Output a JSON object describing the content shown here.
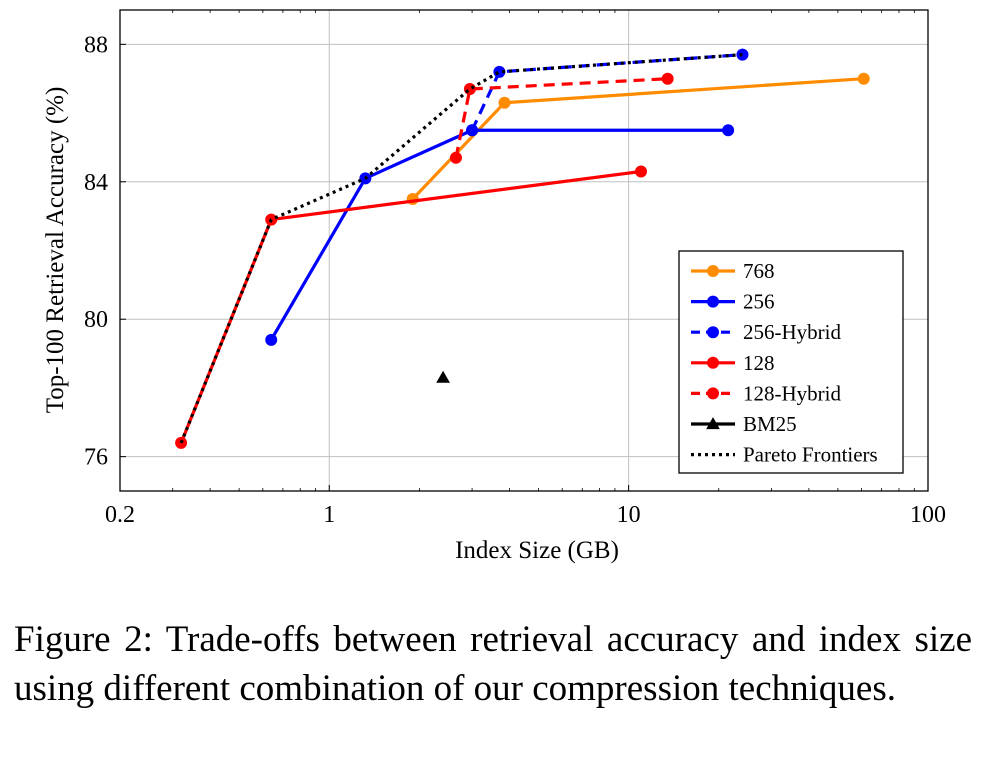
{
  "chart_data": {
    "type": "line",
    "xscale": "log",
    "xlabel": "Index Size (GB)",
    "ylabel": "Top-100 Retrieval Accuracy (%)",
    "xlim": [
      0.2,
      100
    ],
    "ylim": [
      75,
      89
    ],
    "xticks": [
      {
        "value": 0.2,
        "label": "0.2"
      },
      {
        "value": 1,
        "label": "1"
      },
      {
        "value": 10,
        "label": "10"
      },
      {
        "value": 100,
        "label": "100"
      }
    ],
    "yticks": [
      {
        "value": 76,
        "label": "76"
      },
      {
        "value": 80,
        "label": "80"
      },
      {
        "value": 84,
        "label": "84"
      },
      {
        "value": 88,
        "label": "88"
      }
    ],
    "grid": true,
    "legend_position": "bottom-right",
    "series": [
      {
        "name": "768",
        "color": "#ff8c00",
        "style": "solid",
        "marker": "circle",
        "x": [
          1.9,
          3.85,
          61
        ],
        "y": [
          83.5,
          86.3,
          87.0
        ]
      },
      {
        "name": "256",
        "color": "#0000ff",
        "style": "solid",
        "marker": "circle",
        "x": [
          0.64,
          1.32,
          3.0,
          21.5
        ],
        "y": [
          79.4,
          84.1,
          85.5,
          85.5
        ]
      },
      {
        "name": "256-Hybrid",
        "color": "#0000ff",
        "style": "dashed",
        "marker": "circle",
        "x": [
          3.0,
          3.7,
          24
        ],
        "y": [
          85.5,
          87.2,
          87.7
        ]
      },
      {
        "name": "128",
        "color": "#ff0000",
        "style": "solid",
        "marker": "circle",
        "x": [
          0.32,
          0.64,
          11
        ],
        "y": [
          76.4,
          82.9,
          84.3
        ]
      },
      {
        "name": "128-Hybrid",
        "color": "#ff0000",
        "style": "dashed",
        "marker": "circle",
        "x": [
          2.65,
          2.95,
          13.5
        ],
        "y": [
          84.7,
          86.7,
          87.0
        ]
      },
      {
        "name": "BM25",
        "color": "#000000",
        "style": "solid",
        "marker": "triangle",
        "x": [
          2.4
        ],
        "y": [
          78.3
        ]
      },
      {
        "name": "Pareto Frontiers",
        "color": "#000000",
        "style": "dotted",
        "marker": "none",
        "x": [
          0.32,
          0.64,
          1.32,
          2.95,
          3.7,
          24
        ],
        "y": [
          76.4,
          82.9,
          84.1,
          86.7,
          87.2,
          87.7
        ]
      }
    ]
  },
  "caption": "Figure 2: Trade-offs between retrieval accuracy and index size using different combination of our compression techniques."
}
